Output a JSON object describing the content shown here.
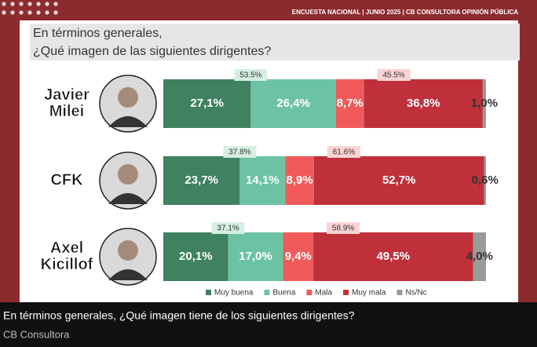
{
  "header": "ENCUESTA NACIONAL | JUNIO 2025 | CB CONSULTORA OPINIÓN PÚBLICA",
  "chart_data": {
    "type": "bar",
    "orientation": "horizontal",
    "stacked": true,
    "title": [
      "En términos generales,",
      "¿Qué imagen de las siguientes dirigentes?"
    ],
    "categories": [
      [
        "Javier",
        "Milei"
      ],
      [
        "CFK"
      ],
      [
        "Axel",
        "Kicillof"
      ]
    ],
    "xlim": [
      0,
      100
    ],
    "series": [
      {
        "name": "Muy buena",
        "color": "#3f8161",
        "values": [
          27.1,
          23.7,
          20.1
        ],
        "value_labels": [
          "27,1%",
          "23,7%",
          "20,1%"
        ]
      },
      {
        "name": "Buena",
        "color": "#6cc3a3",
        "values": [
          26.4,
          14.1,
          17.0
        ],
        "value_labels": [
          "26,4%",
          "14,1%",
          "17,0%"
        ]
      },
      {
        "name": "Mala",
        "color": "#f05a5a",
        "values": [
          8.7,
          8.9,
          9.4
        ],
        "value_labels": [
          "8,7%",
          "8,9%",
          "9,4%"
        ]
      },
      {
        "name": "Muy mala",
        "color": "#c0303a",
        "values": [
          36.8,
          52.7,
          49.5
        ],
        "value_labels": [
          "36,8%",
          "52,7%",
          "49,5%"
        ]
      },
      {
        "name": "Ns/Nc",
        "color": "#9a9a9a",
        "values": [
          1.0,
          0.6,
          4.0
        ],
        "value_labels": [
          "1,0%",
          "0,6%",
          "4,0%"
        ]
      }
    ],
    "annotations": [
      {
        "color": "#d6efe1",
        "values": [
          53.5,
          37.8,
          37.1
        ],
        "value_labels": [
          "53.5%",
          "37.8%",
          "37.1%"
        ]
      },
      {
        "color": "#fbd3d3",
        "values": [
          45.5,
          61.6,
          58.9
        ],
        "value_labels": [
          "45.5%",
          "61.6%",
          "58.9%"
        ]
      }
    ]
  },
  "caption": {
    "text": "En términos generales, ¿Qué imagen tiene de los siguientes dirigentes?",
    "source": "CB Consultora"
  }
}
